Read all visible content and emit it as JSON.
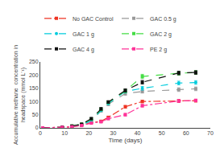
{
  "chart_data": {
    "type": "line",
    "xlabel": "Time (days)",
    "ylabel": "Accumulative methane  concentration in\nheadspace (mmol L⁻¹)",
    "xlim": [
      0,
      70
    ],
    "ylim": [
      0,
      250
    ],
    "xticks": [
      0,
      10,
      20,
      30,
      40,
      50,
      60,
      70
    ],
    "yticks": [
      0,
      50,
      100,
      150,
      200,
      250
    ],
    "grid": false,
    "legend": "upper left",
    "x": [
      1,
      9,
      13,
      17,
      21,
      25,
      28,
      35,
      42,
      57,
      64
    ],
    "series": [
      {
        "name": "No GAC Control",
        "color": "#EE3322",
        "marker": "square",
        "line_style": "dashdot",
        "values": [
          0,
          2,
          4,
          9,
          20,
          25,
          40,
          80,
          100,
          102,
          103
        ],
        "yerr": [
          0,
          1,
          1,
          2,
          2,
          3,
          4,
          5,
          5,
          5,
          5
        ]
      },
      {
        "name": "GAC 0.5 g",
        "color": "#999999",
        "marker": "square",
        "line_style": "dash",
        "values": [
          0,
          2,
          5,
          11,
          25,
          65,
          90,
          130,
          138,
          145,
          148
        ],
        "yerr": [
          0,
          1,
          2,
          3,
          4,
          5,
          6,
          6,
          6,
          7,
          7
        ]
      },
      {
        "name": "GAC 1 g",
        "color": "#00CCDD",
        "marker": "circle",
        "line_style": "dash",
        "values": [
          0,
          2,
          6,
          12,
          28,
          67,
          93,
          138,
          150,
          170,
          172
        ],
        "yerr": [
          0,
          1,
          2,
          3,
          4,
          5,
          5,
          6,
          7,
          7,
          7
        ]
      },
      {
        "name": "GAC 2 g",
        "color": "#44DD44",
        "marker": "square",
        "line_style": "dash",
        "values": [
          0,
          3,
          7,
          14,
          33,
          70,
          97,
          140,
          195,
          207,
          210
        ],
        "yerr": [
          0,
          1,
          2,
          3,
          4,
          5,
          5,
          6,
          8,
          7,
          7
        ]
      },
      {
        "name": "GAC 4 g",
        "color": "#111111",
        "marker": "square",
        "line_style": "dash",
        "values": [
          0,
          3,
          7,
          14,
          35,
          72,
          98,
          142,
          173,
          208,
          210
        ],
        "yerr": [
          0,
          1,
          2,
          3,
          4,
          5,
          5,
          6,
          7,
          7,
          7
        ]
      },
      {
        "name": "PE 2 g",
        "color": "#FF3399",
        "marker": "square",
        "line_style": "dashdot",
        "values": [
          0,
          2,
          4,
          9,
          18,
          23,
          35,
          50,
          84,
          102,
          104
        ],
        "yerr": [
          0,
          1,
          1,
          2,
          2,
          3,
          4,
          5,
          5,
          5,
          5
        ]
      }
    ]
  }
}
